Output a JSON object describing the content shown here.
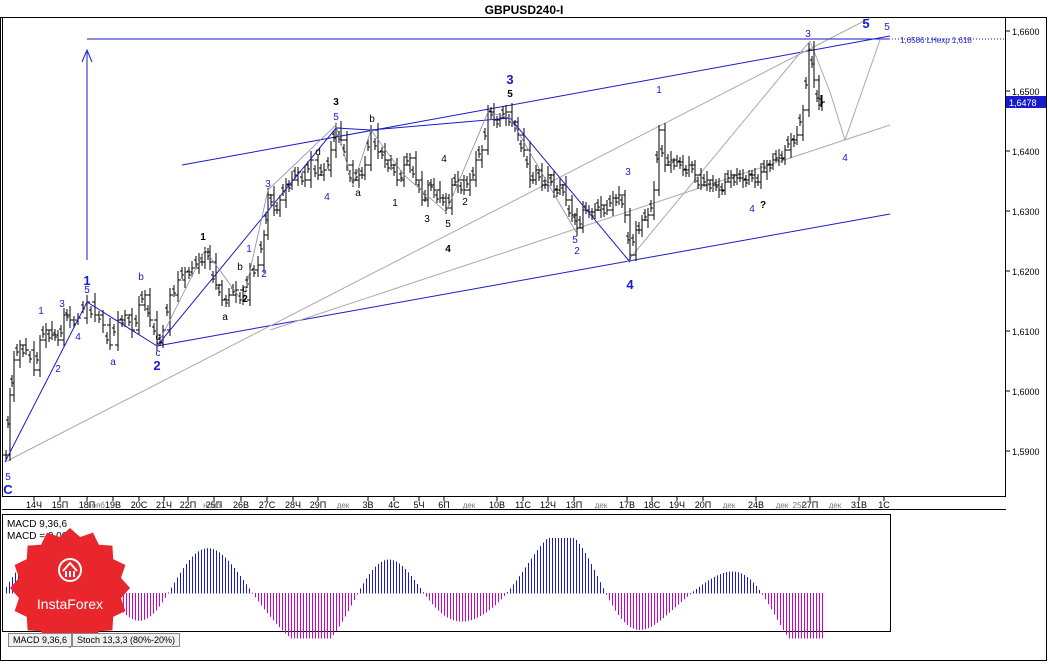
{
  "window": {
    "title": "GBPUSD240-I"
  },
  "price_axis": {
    "ticks": [
      "1,6600",
      "1,6500",
      "1,6400",
      "1,6300",
      "1,6200",
      "1,6100",
      "1,6000",
      "1,5900"
    ],
    "current_price": "1,6478",
    "target_label": "1,6586 LНехр 1,618"
  },
  "time_axis": {
    "ticks": [
      "14Ч",
      "15П",
      "18П",
      "19В",
      "20С",
      "21Ч",
      "22П",
      "25П",
      "26В",
      "27С",
      "28Ч",
      "29П",
      "3В",
      "4С",
      "5Ч",
      "6П",
      "10В",
      "11С",
      "12Ч",
      "13П",
      "17В",
      "18С",
      "19Ч",
      "20П",
      "24В",
      "27П",
      "31В",
      "1С"
    ],
    "faded_ticks": [
      "нояб",
      "нояб",
      "дек",
      "дек",
      "дек",
      "дек",
      "дек",
      "25С",
      "дек"
    ]
  },
  "wave_labels": {
    "blue_large": [
      "1",
      "2",
      "3",
      "4",
      "5",
      "C"
    ],
    "blue_small": [
      "1",
      "2",
      "3",
      "4",
      "5",
      "a",
      "b",
      "c",
      "4",
      "5",
      "3",
      "1",
      "2",
      "4",
      "1",
      "2",
      "3",
      "4",
      "5",
      "5",
      "5",
      "3"
    ],
    "black": [
      "1",
      "2",
      "3",
      "4",
      "5",
      "a",
      "b",
      "c",
      "d",
      "1",
      "2",
      "3",
      "4",
      "5",
      "a",
      "b",
      "c",
      "?"
    ]
  },
  "indicators": {
    "macd_line1": "MACD 9,36,6",
    "macd_line2": "MACD = 0,00",
    "tabs": [
      "MACD 9,36,6",
      "Stoch 13,3,3 (80%-20%)"
    ]
  },
  "logo": {
    "text": "InstaForex"
  },
  "colors": {
    "wave_blue": "#1a1acd",
    "wave_black": "#000000",
    "histogram_positive": "#1a1acd",
    "histogram_negative": "#cc00cc",
    "logo_red": "#e8262c"
  },
  "chart_data": {
    "type": "line",
    "title": "GBPUSD240-I",
    "xlabel": "",
    "ylabel": "",
    "ylim": [
      1.582,
      1.664
    ],
    "grid": false,
    "x": [
      "14Ч",
      "15П",
      "18П",
      "19В",
      "20С",
      "21Ч",
      "22П",
      "25П",
      "26В",
      "27С",
      "28Ч",
      "29П",
      "3В",
      "4С",
      "5Ч",
      "6П",
      "10В",
      "11С",
      "12Ч",
      "13П",
      "17В",
      "18С",
      "19Ч",
      "20П",
      "24В",
      "27П"
    ],
    "series": [
      {
        "values": [
          1.603,
          1.614,
          1.61,
          1.609,
          1.613,
          1.608,
          1.621,
          1.617,
          1.619,
          1.633,
          1.637,
          1.639,
          1.637,
          1.636,
          1.63,
          1.639,
          1.645,
          1.635,
          1.627,
          1.629,
          1.624,
          1.639,
          1.636,
          1.633,
          1.636,
          1.649
        ]
      }
    ],
    "annotations": {
      "target_price": 1.6586,
      "current_price": 1.6478
    }
  }
}
